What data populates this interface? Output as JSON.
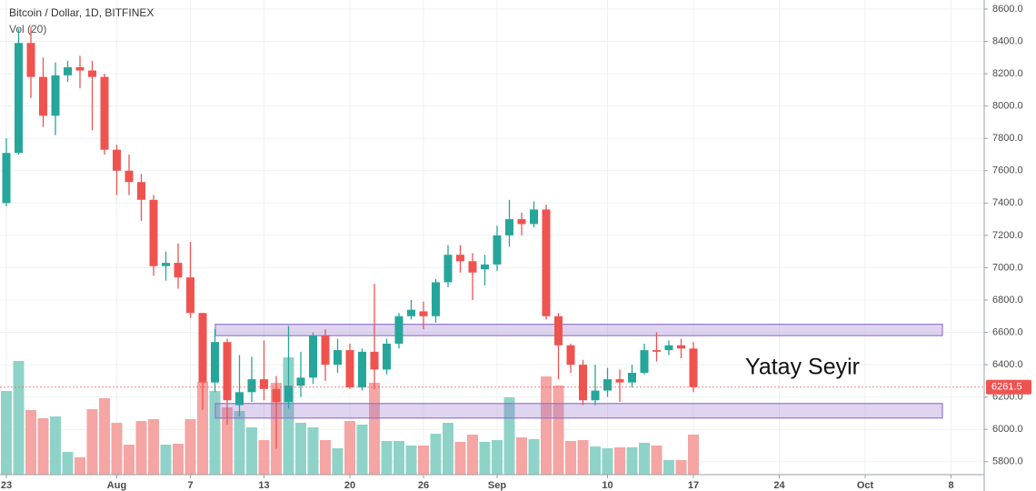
{
  "chart_data": {
    "type": "candlestick",
    "title": "Bitcoin / Dollar, 1D, BITFINEX",
    "subtitle": "Vol (20)",
    "annotation": "Yatay Seyir",
    "categories": [
      "23",
      null,
      null,
      null,
      null,
      null,
      null,
      null,
      null,
      "Aug",
      null,
      null,
      null,
      null,
      null,
      "7",
      null,
      null,
      null,
      null,
      null,
      "13",
      null,
      null,
      null,
      null,
      null,
      null,
      "20",
      null,
      null,
      null,
      null,
      null,
      "26",
      null,
      null,
      null,
      null,
      null,
      "Sep",
      null,
      null,
      null,
      null,
      null,
      null,
      null,
      null,
      "10",
      null,
      null,
      null,
      null,
      null,
      null,
      "17",
      null,
      null,
      null,
      null,
      null,
      null,
      "24",
      null,
      null,
      null,
      null,
      null,
      null,
      "Oct",
      null,
      null,
      null,
      null,
      null,
      null,
      "8"
    ],
    "open": [
      7400,
      7710,
      8390,
      8180,
      7940,
      8190,
      8240,
      8220,
      8180,
      7730,
      7600,
      7530,
      7420,
      7010,
      7030,
      6940,
      6720,
      6290,
      6540,
      6150,
      6230,
      6310,
      6250,
      6170,
      6270,
      6320,
      6580,
      6400,
      6490,
      6260,
      6480,
      6370,
      6530,
      6700,
      6730,
      6700,
      6910,
      7080,
      7040,
      6990,
      7020,
      7200,
      7300,
      7270,
      7360,
      6700,
      6520,
      6400,
      6180,
      6240,
      6310,
      6290,
      6350,
      6490,
      6490,
      6520,
      6500,
      null,
      null,
      null,
      null,
      null,
      null,
      null,
      null,
      null,
      null,
      null,
      null,
      null,
      null,
      null,
      null,
      null,
      null,
      null,
      null,
      null
    ],
    "high": [
      7800,
      8480,
      8490,
      8300,
      8270,
      8280,
      8310,
      8280,
      8200,
      7760,
      7700,
      7580,
      7450,
      7100,
      7150,
      7160,
      6720,
      6620,
      6560,
      6460,
      6450,
      6550,
      6330,
      6640,
      6480,
      6600,
      6620,
      6560,
      6530,
      6500,
      6900,
      6560,
      6720,
      6800,
      6790,
      6930,
      7140,
      7140,
      7090,
      7080,
      7260,
      7420,
      7340,
      7410,
      7390,
      6720,
      6530,
      6430,
      6400,
      6380,
      6370,
      6400,
      6530,
      6600,
      6550,
      6560,
      6540,
      null,
      null,
      null,
      null,
      null,
      null,
      null,
      null,
      null,
      null,
      null,
      null,
      null,
      null,
      null,
      null,
      null,
      null,
      null,
      null,
      null
    ],
    "low": [
      7380,
      7700,
      8050,
      7870,
      7820,
      8150,
      8110,
      7850,
      7700,
      7450,
      7450,
      7290,
      6950,
      6920,
      6870,
      6690,
      6120,
      6230,
      6030,
      6080,
      6170,
      6180,
      5880,
      6130,
      6200,
      6280,
      6300,
      6350,
      6250,
      6240,
      6250,
      6340,
      6500,
      6680,
      6620,
      6660,
      6880,
      6970,
      6800,
      6890,
      6980,
      7130,
      7200,
      7250,
      6680,
      6310,
      6350,
      6150,
      6150,
      6200,
      6170,
      6260,
      6340,
      6420,
      6460,
      6440,
      6230,
      null,
      null,
      null,
      null,
      null,
      null,
      null,
      null,
      null,
      null,
      null,
      null,
      null,
      null,
      null,
      null,
      null,
      null,
      null,
      null,
      null
    ],
    "close": [
      7710,
      8390,
      8180,
      7940,
      8190,
      8240,
      8220,
      8180,
      7730,
      7600,
      7530,
      7420,
      7010,
      7030,
      6940,
      6720,
      6290,
      6540,
      6180,
      6230,
      6310,
      6250,
      6170,
      6270,
      6320,
      6580,
      6400,
      6490,
      6260,
      6480,
      6370,
      6530,
      6700,
      6740,
      6700,
      6910,
      7080,
      7040,
      6970,
      7020,
      7200,
      7300,
      7270,
      7360,
      6700,
      6520,
      6400,
      6180,
      6240,
      6310,
      6290,
      6350,
      6490,
      6480,
      6520,
      6500,
      6261.5,
      null,
      null,
      null,
      null,
      null,
      null,
      null,
      null,
      null,
      null,
      null,
      null,
      null,
      null,
      null,
      null,
      null,
      null,
      null,
      null,
      null
    ],
    "volume": [
      92,
      125,
      71,
      62,
      64,
      25,
      19,
      72,
      84,
      57,
      33,
      59,
      61,
      33,
      34,
      61,
      102,
      92,
      74,
      70,
      52,
      38,
      101,
      129,
      57,
      52,
      38,
      29,
      59,
      55,
      101,
      37,
      37,
      32,
      32,
      45,
      57,
      36,
      44,
      36,
      38,
      85,
      41,
      39,
      108,
      98,
      37,
      38,
      31,
      29,
      30,
      30,
      35,
      32,
      16,
      16,
      44,
      null,
      null,
      null,
      null,
      null,
      null,
      null,
      null,
      null,
      null,
      null,
      null,
      null,
      null,
      null,
      null,
      null,
      null,
      null,
      null,
      null
    ],
    "up_color": "#26a69a",
    "down_color": "#ef5350",
    "up_volume_color": "#8fd3c8",
    "down_volume_color": "#f5a5a3",
    "zones": [
      {
        "low": 6580,
        "high": 6650
      },
      {
        "low": 6070,
        "high": 6160
      }
    ],
    "zone_color": "#9575cd",
    "ylim": [
      5720,
      8656
    ],
    "yticks": [
      {
        "value": 5800,
        "label": "5800.0"
      },
      {
        "value": 6000,
        "label": "6000.0"
      },
      {
        "value": 6200,
        "label": "6200.0"
      },
      {
        "value": 6400,
        "label": "6400.0"
      },
      {
        "value": 6600,
        "label": "6600.0"
      },
      {
        "value": 6800,
        "label": "6800.0"
      },
      {
        "value": 7000,
        "label": "7000.0"
      },
      {
        "value": 7200,
        "label": "7200.0"
      },
      {
        "value": 7400,
        "label": "7400.0"
      },
      {
        "value": 7600,
        "label": "7600.0"
      },
      {
        "value": 7800,
        "label": "7800.0"
      },
      {
        "value": 8000,
        "label": "8000.0"
      },
      {
        "value": 8200,
        "label": "8200.0"
      },
      {
        "value": 8400,
        "label": "8400.0"
      },
      {
        "value": 8600,
        "label": "8600.0"
      }
    ],
    "grid": true
  }
}
